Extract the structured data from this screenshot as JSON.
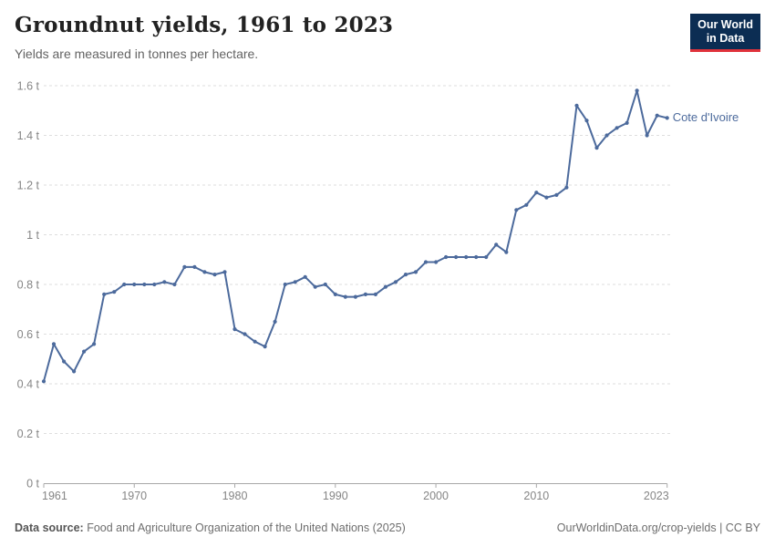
{
  "header": {
    "title": "Groundnut yields, 1961 to 2023",
    "subtitle": "Yields are measured in tonnes per hectare."
  },
  "logo": {
    "line1": "Our World",
    "line2": "in Data",
    "bg_color": "#0c2d53",
    "accent_color": "#e0323b"
  },
  "footer": {
    "source_label": "Data source:",
    "source_text": "Food and Agriculture Organization of the United Nations (2025)",
    "credit": "OurWorldinData.org/crop-yields | CC BY"
  },
  "colors": {
    "series_blue": "#4c6a9c",
    "gridline": "#dedede",
    "axis": "#a8a8a8",
    "tick_text": "#858585"
  },
  "chart_data": {
    "type": "line",
    "title": "Groundnut yields, 1961 to 2023",
    "subtitle": "Yields are measured in tonnes per hectare.",
    "unit": "t",
    "xlabel": "",
    "ylabel": "",
    "xlim": [
      1961,
      2023
    ],
    "ylim": [
      0,
      1.6
    ],
    "x_ticks": [
      1961,
      1970,
      1980,
      1990,
      2000,
      2010,
      2023
    ],
    "y_ticks": [
      0,
      0.2,
      0.4,
      0.6,
      0.8,
      1,
      1.2,
      1.4,
      1.6
    ],
    "grid": "horizontal-dashed",
    "legend_position": "right-end-of-line",
    "series": [
      {
        "name": "Cote d'Ivoire",
        "color": "#4c6a9c",
        "x": [
          1961,
          1962,
          1963,
          1964,
          1965,
          1966,
          1967,
          1968,
          1969,
          1970,
          1971,
          1972,
          1973,
          1974,
          1975,
          1976,
          1977,
          1978,
          1979,
          1980,
          1981,
          1982,
          1983,
          1984,
          1985,
          1986,
          1987,
          1988,
          1989,
          1990,
          1991,
          1992,
          1993,
          1994,
          1995,
          1996,
          1997,
          1998,
          1999,
          2000,
          2001,
          2002,
          2003,
          2004,
          2005,
          2006,
          2007,
          2008,
          2009,
          2010,
          2011,
          2012,
          2013,
          2014,
          2015,
          2016,
          2017,
          2018,
          2019,
          2020,
          2021,
          2022,
          2023
        ],
        "values": [
          0.41,
          0.56,
          0.49,
          0.45,
          0.53,
          0.56,
          0.76,
          0.77,
          0.8,
          0.8,
          0.8,
          0.8,
          0.81,
          0.8,
          0.87,
          0.87,
          0.85,
          0.84,
          0.85,
          0.62,
          0.6,
          0.57,
          0.55,
          0.65,
          0.8,
          0.81,
          0.83,
          0.79,
          0.8,
          0.76,
          0.75,
          0.75,
          0.76,
          0.76,
          0.79,
          0.81,
          0.84,
          0.85,
          0.89,
          0.89,
          0.91,
          0.91,
          0.91,
          0.91,
          0.91,
          0.96,
          0.93,
          1.1,
          1.12,
          1.17,
          1.15,
          1.16,
          1.19,
          1.52,
          1.46,
          1.35,
          1.4,
          1.43,
          1.45,
          1.58,
          1.4,
          1.48,
          1.47
        ]
      }
    ]
  }
}
